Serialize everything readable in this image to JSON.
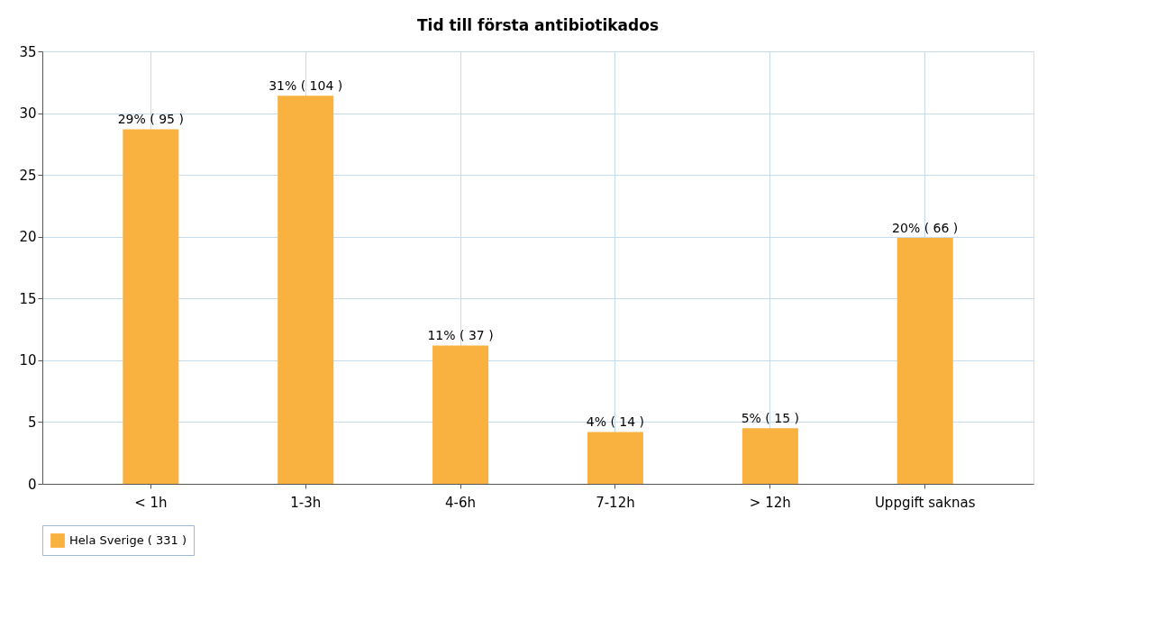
{
  "chart_data": {
    "type": "bar",
    "title": "Tid till första antibiotikados",
    "categories": [
      "< 1h",
      "1-3h",
      "4-6h",
      "7-12h",
      "> 12h",
      "Uppgift saknas"
    ],
    "series": [
      {
        "name": "Hela Sverige ( 331 )",
        "color": "#f9b140",
        "values": [
          28.7,
          31.4,
          11.2,
          4.2,
          4.5,
          19.9
        ],
        "value_labels": [
          "29% ( 95 )",
          "31% ( 104 )",
          "11% ( 37 )",
          "4% ( 14 )",
          "5% ( 15 )",
          "20% ( 66 )"
        ]
      }
    ],
    "ylim": [
      0,
      35
    ],
    "yticks": [
      0,
      5,
      10,
      15,
      20,
      25,
      30,
      35
    ],
    "grid": true,
    "legend": "bottom"
  }
}
